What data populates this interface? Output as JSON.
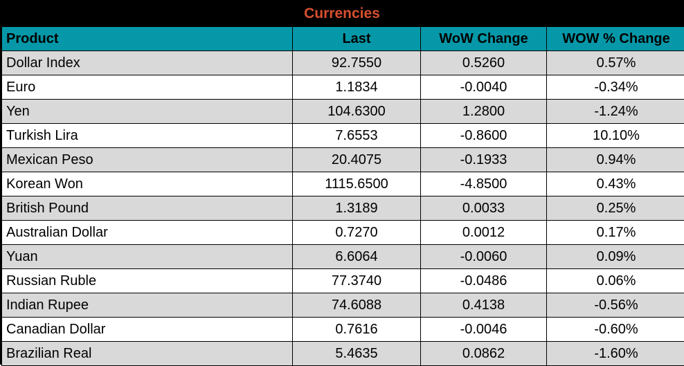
{
  "title": "Currencies",
  "colors": {
    "title_bg": "#000000",
    "title_text": "#d8502f",
    "header_bg": "#0698a8",
    "row_alt_bg": "#d9d9d9",
    "row_bg": "#ffffff",
    "border": "#000000"
  },
  "chart_data": {
    "type": "table",
    "title": "Currencies",
    "columns": [
      "Product",
      "Last",
      "WoW Change",
      "WOW % Change"
    ],
    "rows": [
      [
        "Dollar Index",
        "92.7550",
        "0.5260",
        "0.57%"
      ],
      [
        "Euro",
        "1.1834",
        "-0.0040",
        "-0.34%"
      ],
      [
        "Yen",
        "104.6300",
        "1.2800",
        "-1.24%"
      ],
      [
        "Turkish Lira",
        "7.6553",
        "-0.8600",
        "10.10%"
      ],
      [
        "Mexican Peso",
        "20.4075",
        "-0.1933",
        "0.94%"
      ],
      [
        "Korean Won",
        "1115.6500",
        "-4.8500",
        "0.43%"
      ],
      [
        "British Pound",
        "1.3189",
        "0.0033",
        "0.25%"
      ],
      [
        "Australian Dollar",
        "0.7270",
        "0.0012",
        "0.17%"
      ],
      [
        "Yuan",
        "6.6064",
        "-0.0060",
        "0.09%"
      ],
      [
        "Russian Ruble",
        "77.3740",
        "-0.0486",
        "0.06%"
      ],
      [
        "Indian Rupee",
        "74.6088",
        "0.4138",
        "-0.56%"
      ],
      [
        "Canadian Dollar",
        "0.7616",
        "-0.0046",
        "-0.60%"
      ],
      [
        "Brazilian Real",
        "5.4635",
        "0.0862",
        "-1.60%"
      ]
    ]
  }
}
